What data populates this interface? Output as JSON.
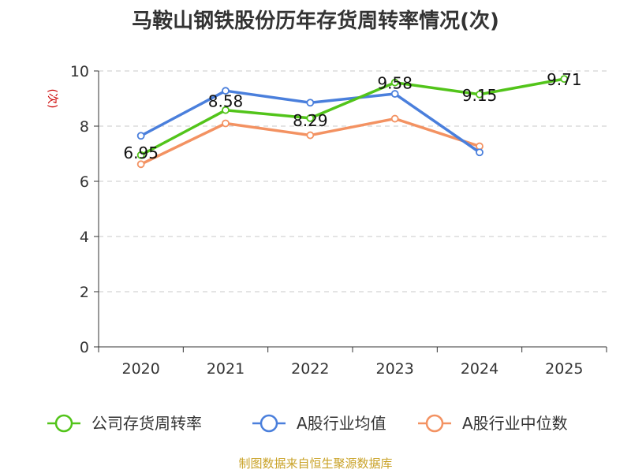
{
  "chart_data": {
    "type": "line",
    "title": "马鞍山钢铁股份历年存货周转率情况(次)",
    "ylabel": "(次)",
    "categories": [
      "2020",
      "2021",
      "2022",
      "2023",
      "2024",
      "2025"
    ],
    "ylim": [
      0,
      10
    ],
    "yticks": [
      0,
      2,
      4,
      6,
      8,
      10
    ],
    "grid": true,
    "legend_position": "bottom",
    "series": [
      {
        "name": "公司存货周转率",
        "color": "#52c41a",
        "values": [
          6.95,
          8.58,
          8.29,
          9.58,
          9.15,
          9.71
        ],
        "labels": [
          "6.95",
          "8.58",
          "8.29",
          "9.58",
          "9.15",
          "9.71"
        ]
      },
      {
        "name": "A股行业均值",
        "color": "#4a7fdc",
        "values": [
          7.65,
          9.28,
          8.85,
          9.17,
          7.05,
          null
        ]
      },
      {
        "name": "A股行业中位数",
        "color": "#f39262",
        "values": [
          6.62,
          8.1,
          7.67,
          8.27,
          7.27,
          null
        ]
      }
    ]
  },
  "source": "制图数据来自恒生聚源数据库"
}
